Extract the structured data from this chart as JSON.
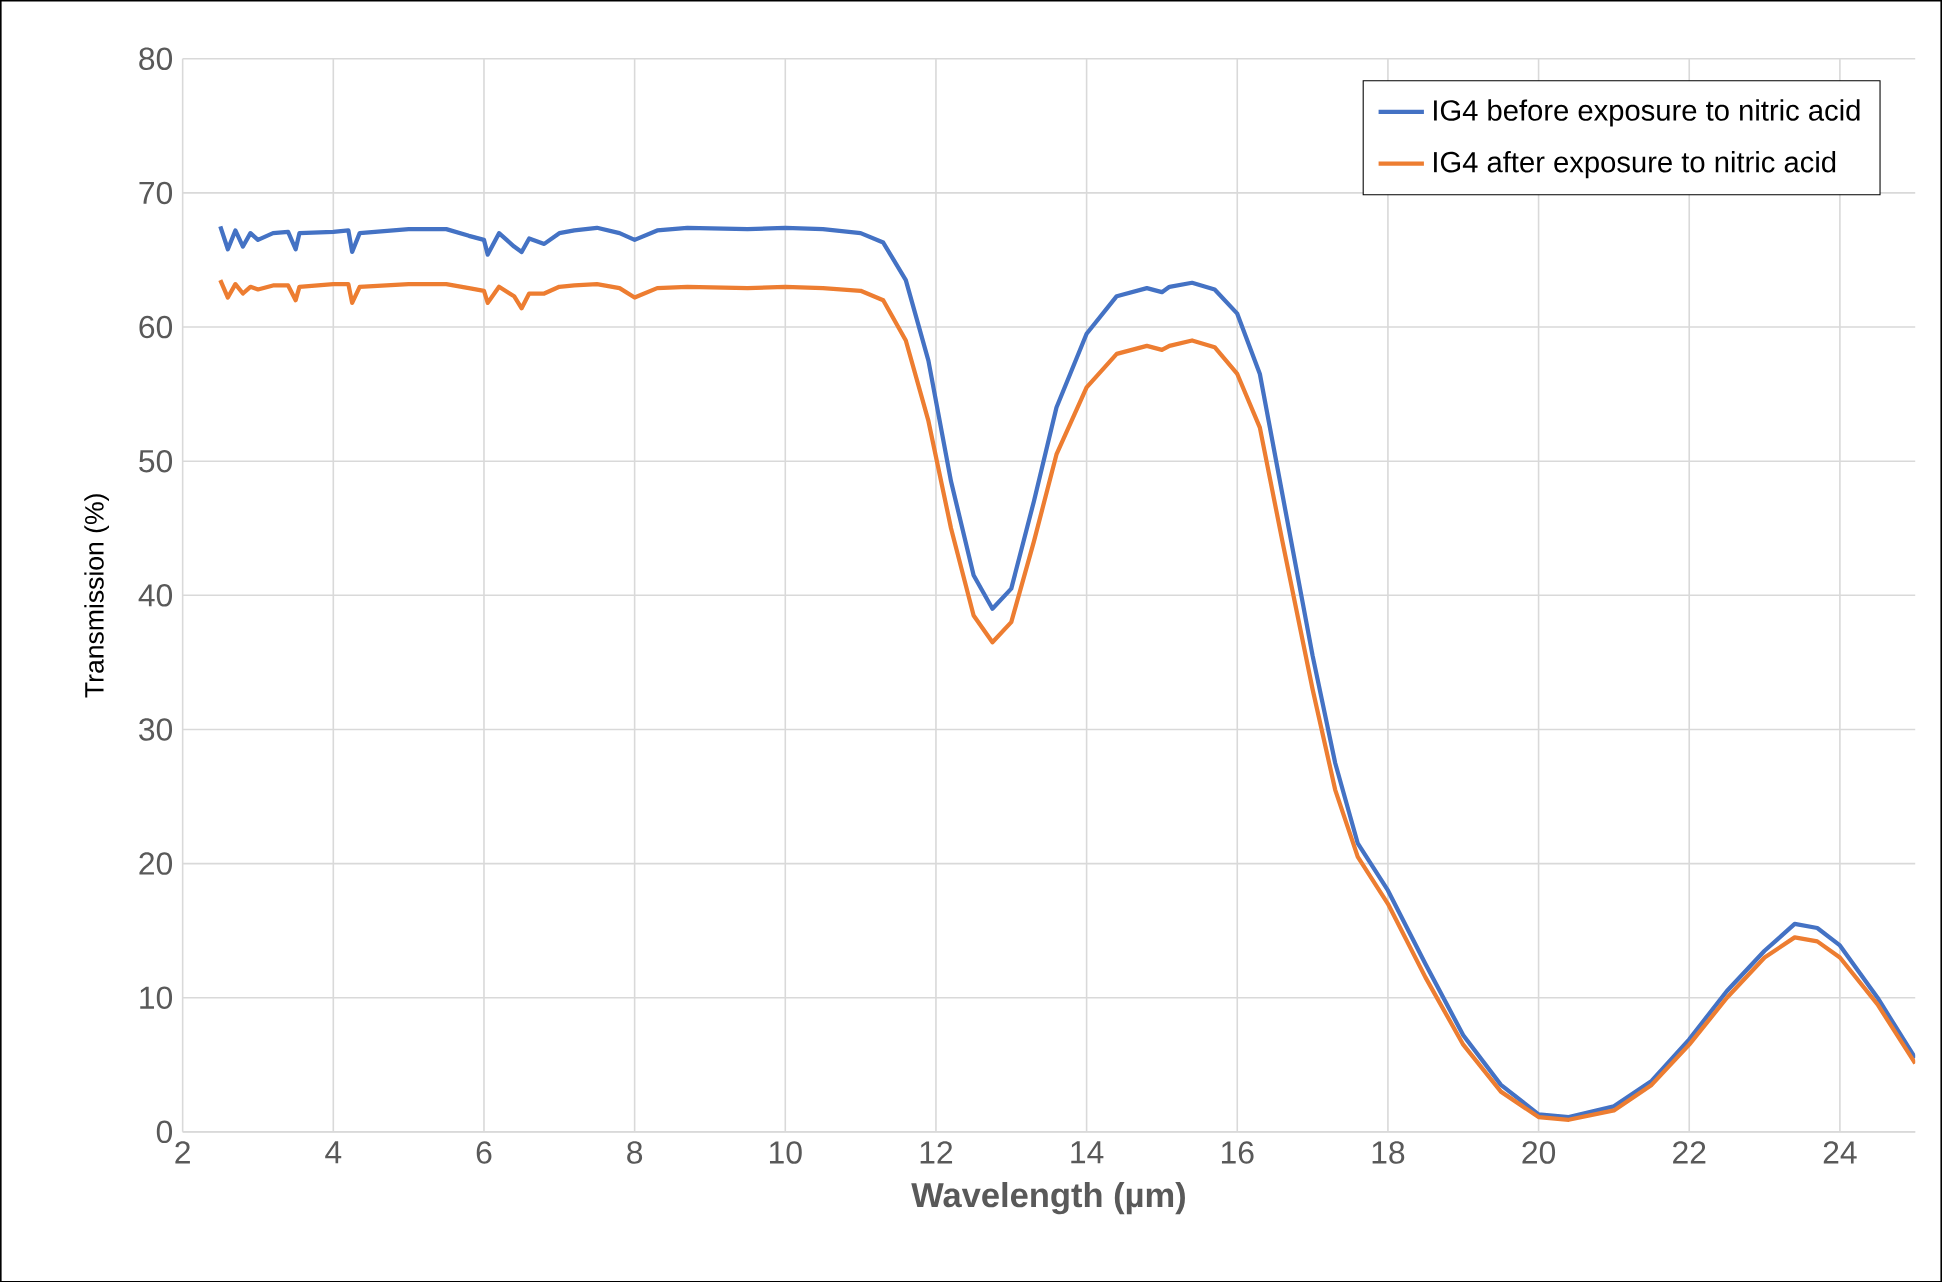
{
  "chart_data": {
    "type": "line",
    "xlabel": "Wavelength (µm)",
    "ylabel": "Transmission (%)",
    "xlim": [
      2,
      25
    ],
    "ylim": [
      0,
      80
    ],
    "xticks": [
      2,
      4,
      6,
      8,
      10,
      12,
      14,
      16,
      18,
      20,
      22,
      24
    ],
    "yticks": [
      0,
      10,
      20,
      30,
      40,
      50,
      60,
      70,
      80
    ],
    "grid": true,
    "legend": "top right",
    "marker": "none",
    "line_style": "solid",
    "series": [
      {
        "name": "IG4 before exposure to nitric acid",
        "color": "#4472c4",
        "x": [
          2.5,
          2.6,
          2.7,
          2.8,
          2.9,
          3.0,
          3.2,
          3.4,
          3.5,
          3.55,
          4.0,
          4.2,
          4.25,
          4.35,
          5,
          5.5,
          5.8,
          6.0,
          6.05,
          6.2,
          6.4,
          6.5,
          6.6,
          6.8,
          7.0,
          7.2,
          7.5,
          7.8,
          8.0,
          8.3,
          8.7,
          9.5,
          10,
          10.5,
          11,
          11.3,
          11.6,
          11.9,
          12.2,
          12.5,
          12.75,
          13.0,
          13.3,
          13.6,
          14.0,
          14.4,
          14.8,
          15.0,
          15.1,
          15.4,
          15.7,
          16.0,
          16.3,
          16.6,
          17.0,
          17.3,
          17.6,
          18.0,
          18.5,
          19.0,
          19.5,
          20.0,
          20.4,
          21.0,
          21.5,
          22.0,
          22.5,
          23.0,
          23.4,
          23.7,
          24.0,
          24.5,
          25.0
        ],
        "values": [
          67.5,
          65.8,
          67.2,
          66.0,
          67.0,
          66.5,
          67.0,
          67.1,
          65.8,
          67.0,
          67.1,
          67.2,
          65.6,
          67.0,
          67.3,
          67.3,
          66.8,
          66.5,
          65.4,
          67.0,
          66.0,
          65.6,
          66.6,
          66.2,
          67.0,
          67.2,
          67.4,
          67.0,
          66.5,
          67.2,
          67.4,
          67.3,
          67.4,
          67.3,
          67.0,
          66.3,
          63.5,
          57.5,
          48.5,
          41.5,
          39.0,
          40.5,
          47,
          54,
          59.5,
          62.3,
          62.9,
          62.6,
          63.0,
          63.3,
          62.8,
          61.0,
          56.5,
          47.5,
          35.5,
          27.5,
          21.5,
          18.0,
          12.5,
          7.2,
          3.5,
          1.3,
          1.1,
          1.9,
          3.8,
          6.9,
          10.5,
          13.5,
          15.5,
          15.2,
          13.9,
          10.0,
          5.5
        ]
      },
      {
        "name": "IG4 after exposure to nitric acid",
        "color": "#ed7d31",
        "x": [
          2.5,
          2.6,
          2.7,
          2.8,
          2.9,
          3.0,
          3.2,
          3.4,
          3.5,
          3.55,
          4.0,
          4.2,
          4.25,
          4.35,
          5,
          5.5,
          5.8,
          6.0,
          6.05,
          6.2,
          6.4,
          6.5,
          6.6,
          6.8,
          7.0,
          7.2,
          7.5,
          7.8,
          8.0,
          8.3,
          8.7,
          9.5,
          10,
          10.5,
          11,
          11.3,
          11.6,
          11.9,
          12.2,
          12.5,
          12.75,
          13.0,
          13.3,
          13.6,
          14.0,
          14.4,
          14.8,
          15.0,
          15.1,
          15.4,
          15.7,
          16.0,
          16.3,
          16.6,
          17.0,
          17.3,
          17.6,
          18.0,
          18.5,
          19.0,
          19.5,
          20.0,
          20.4,
          21.0,
          21.5,
          22.0,
          22.5,
          23.0,
          23.4,
          23.7,
          24.0,
          24.5,
          25.0
        ],
        "values": [
          63.5,
          62.2,
          63.2,
          62.5,
          63.0,
          62.8,
          63.1,
          63.1,
          62.0,
          63.0,
          63.2,
          63.2,
          61.8,
          63.0,
          63.2,
          63.2,
          62.9,
          62.7,
          61.8,
          63.0,
          62.3,
          61.4,
          62.5,
          62.5,
          63.0,
          63.1,
          63.2,
          62.9,
          62.2,
          62.9,
          63.0,
          62.9,
          63.0,
          62.9,
          62.7,
          62.0,
          59.0,
          53.0,
          45.0,
          38.5,
          36.5,
          38.0,
          44,
          50.5,
          55.5,
          58.0,
          58.6,
          58.3,
          58.6,
          59.0,
          58.5,
          56.5,
          52.5,
          44.0,
          33.0,
          25.5,
          20.5,
          17.0,
          11.5,
          6.5,
          3.0,
          1.1,
          0.9,
          1.6,
          3.5,
          6.5,
          10.0,
          13.0,
          14.5,
          14.2,
          13.0,
          9.5,
          5.1
        ]
      }
    ]
  }
}
